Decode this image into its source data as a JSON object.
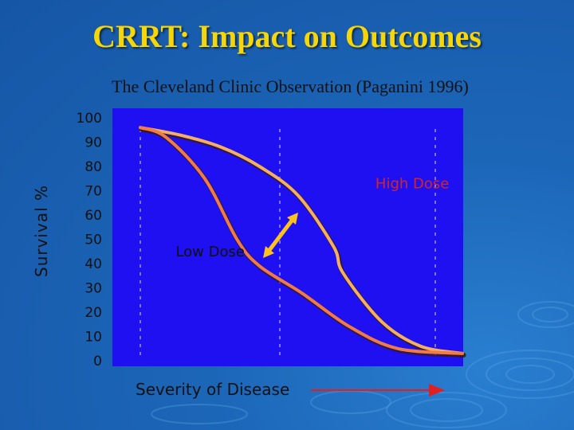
{
  "title": "CRRT: Impact on Outcomes",
  "subtitle": "The Cleveland Clinic Observation (Paganini 1996)",
  "colors": {
    "title": "#f5d60a",
    "plot_background": "#1f10f2",
    "high_dose_line": "#f4b060",
    "low_dose_line": "#f07a4a",
    "high_dose_label": "#d22525",
    "low_dose_label": "#111111",
    "arrow": "#ffc21a",
    "x_arrow": "#e02020"
  },
  "chart_data": {
    "type": "line",
    "title": "CRRT: Impact on Outcomes",
    "subtitle": "The Cleveland Clinic Observation (Paganini 1996)",
    "ylabel": "Survival %",
    "xlabel": "Severity of Disease",
    "ylim": [
      0,
      100
    ],
    "yticks": [
      100,
      90,
      80,
      70,
      60,
      50,
      40,
      30,
      20,
      10,
      0
    ],
    "xlim": [
      0,
      1
    ],
    "grid": "vertical dashed",
    "series": [
      {
        "name": "High Dose",
        "x": [
          0.0,
          0.12,
          0.25,
          0.37,
          0.49,
          0.6,
          0.63,
          0.75,
          0.87,
          1.0
        ],
        "y": [
          96,
          93,
          88,
          80,
          68,
          47,
          36,
          16,
          6,
          3
        ]
      },
      {
        "name": "Low Dose",
        "x": [
          0.0,
          0.08,
          0.2,
          0.3,
          0.37,
          0.5,
          0.65,
          0.8,
          1.0
        ],
        "y": [
          96,
          92,
          75,
          50,
          39,
          28,
          14,
          5,
          3
        ]
      }
    ],
    "annotations": [
      {
        "text": "High Dose",
        "x": 0.73,
        "y": 71
      },
      {
        "text": "Low Dose",
        "x": 0.11,
        "y": 43
      }
    ]
  }
}
